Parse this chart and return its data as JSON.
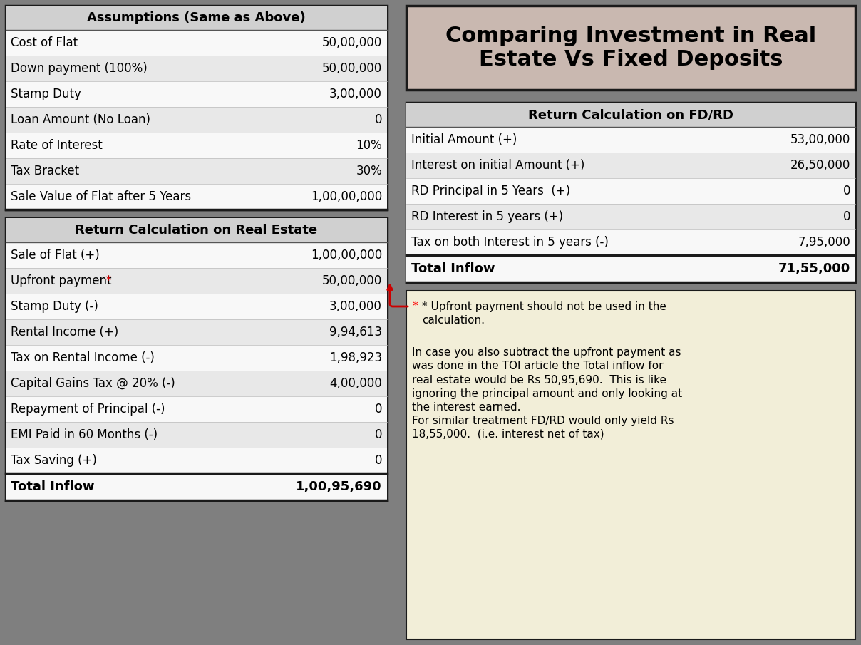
{
  "bg_color": "#7f7f7f",
  "title_box_color": "#c9b8b0",
  "title_text": "Comparing Investment in Real\nEstate Vs Fixed Deposits",
  "section_header_bg": "#d0d0d0",
  "row_bg_light": "#e8e8e8",
  "row_bg_white": "#f8f8f8",
  "total_row_bg": "#f8f8f8",
  "border_color": "#000000",
  "note_box_color": "#f2eed8",
  "assumptions_header": "Assumptions (Same as Above)",
  "assumptions_rows": [
    [
      "Cost of Flat",
      "50,00,000"
    ],
    [
      "Down payment (100%)",
      "50,00,000"
    ],
    [
      "Stamp Duty",
      "3,00,000"
    ],
    [
      "Loan Amount (No Loan)",
      "0"
    ],
    [
      "Rate of Interest",
      "10%"
    ],
    [
      "Tax Bracket",
      "30%"
    ],
    [
      "Sale Value of Flat after 5 Years",
      "1,00,00,000"
    ]
  ],
  "re_header": "Return Calculation on Real Estate",
  "re_rows": [
    [
      "Sale of Flat (+)",
      "1,00,00,000",
      false
    ],
    [
      "Upfront payment *",
      "50,00,000",
      true
    ],
    [
      "Stamp Duty (-)",
      "3,00,000",
      false
    ],
    [
      "Rental Income (+)",
      "9,94,613",
      false
    ],
    [
      "Tax on Rental Income (-)",
      "1,98,923",
      false
    ],
    [
      "Capital Gains Tax @ 20% (-)",
      "4,00,000",
      false
    ],
    [
      "Repayment of Principal (-)",
      "0",
      false
    ],
    [
      "EMI Paid in 60 Months (-)",
      "0",
      false
    ],
    [
      "Tax Saving (+)",
      "0",
      false
    ]
  ],
  "re_total_label": "Total Inflow",
  "re_total_value": "1,00,95,690",
  "fd_header": "Return Calculation on FD/RD",
  "fd_rows": [
    [
      "Initial Amount (+)",
      "53,00,000"
    ],
    [
      "Interest on initial Amount (+)",
      "26,50,000"
    ],
    [
      "RD Principal in 5 Years  (+)",
      "0"
    ],
    [
      "RD Interest in 5 years (+)",
      "0"
    ],
    [
      "Tax on both Interest in 5 years (-)",
      "7,95,000"
    ]
  ],
  "fd_total_label": "Total Inflow",
  "fd_total_value": "71,55,000",
  "note_star_line1": "* Upfront payment should not be used in the",
  "note_star_line2": "calculation.",
  "note_body_lines": [
    "",
    "In case you also subtract the upfront payment as",
    "was done in the TOI article the Total inflow for",
    "real estate would be Rs 50,95,690.  This is like",
    "ignoring the principal amount and only looking at",
    "the interest earned.",
    "For similar treatment FD/RD would only yield Rs",
    "18,55,000.  (i.e. interest net of tax)"
  ]
}
